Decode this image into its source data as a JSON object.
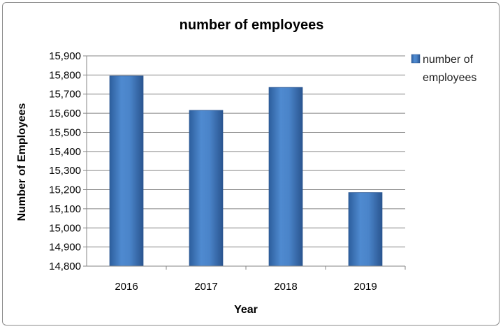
{
  "chart_data": {
    "type": "bar",
    "title": "number of employees",
    "xlabel": "Year",
    "ylabel": "Number of Employees",
    "categories": [
      "2016",
      "2017",
      "2018",
      "2019"
    ],
    "series": [
      {
        "name": "number of employees",
        "values": [
          15795,
          15615,
          15735,
          15185
        ]
      }
    ],
    "ylim": [
      14800,
      15900
    ],
    "yticks": [
      14800,
      14900,
      15000,
      15100,
      15200,
      15300,
      15400,
      15500,
      15600,
      15700,
      15800,
      15900
    ],
    "ytick_labels": [
      "14,800",
      "14,900",
      "15,000",
      "15,100",
      "15,200",
      "15,300",
      "15,400",
      "15,500",
      "15,600",
      "15,700",
      "15,800",
      "15,900"
    ],
    "legend": {
      "position": "right",
      "lines": [
        "number of",
        "employees"
      ]
    },
    "grid": true,
    "bar_color": "#3f76b8"
  }
}
